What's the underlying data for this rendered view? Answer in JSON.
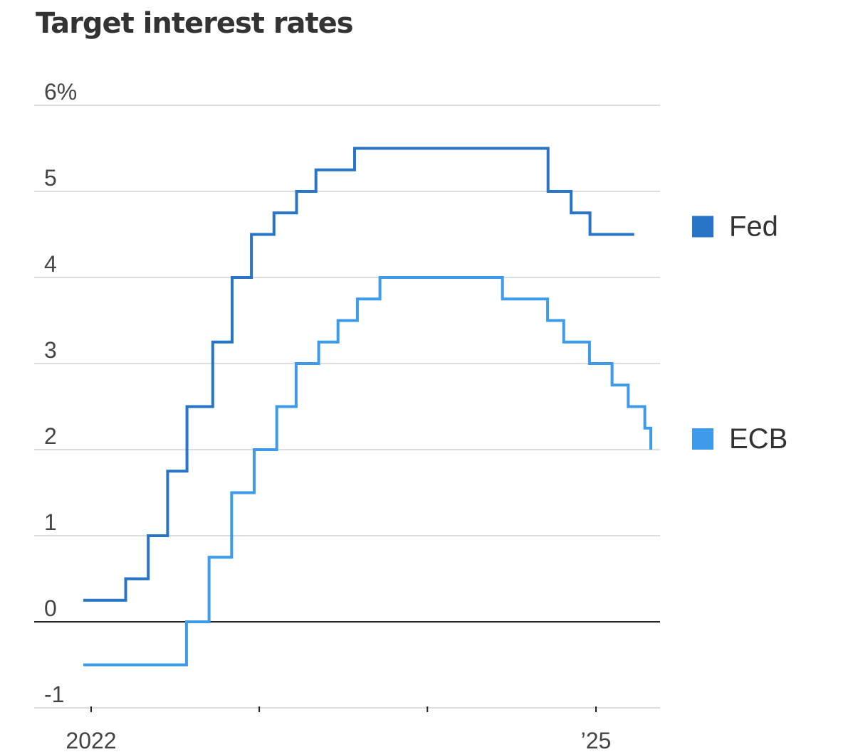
{
  "chart_data": {
    "type": "line",
    "title": "Target interest rates",
    "y_unit_suffix": "%",
    "ylim": [
      -1,
      6
    ],
    "yticks": [
      6,
      5,
      4,
      3,
      2,
      1,
      0,
      -1
    ],
    "ytick_labels": [
      "6%",
      "5",
      "4",
      "3",
      "2",
      "1",
      "0",
      "-1"
    ],
    "xlim": [
      "2021-12-01",
      "2025-04-01"
    ],
    "xtick_dates": [
      "2022-01-01",
      "2023-01-01",
      "2024-01-01",
      "2025-01-01"
    ],
    "xtick_labels": [
      "2022",
      "",
      "",
      "’25"
    ],
    "grid": true,
    "legend_placement": "right",
    "series": [
      {
        "name": "Fed",
        "color": "#2874c6",
        "step": true,
        "points": [
          [
            "2021-12-15",
            0.25
          ],
          [
            "2022-03-17",
            0.5
          ],
          [
            "2022-05-05",
            1.0
          ],
          [
            "2022-06-16",
            1.75
          ],
          [
            "2022-07-28",
            2.5
          ],
          [
            "2022-09-22",
            3.25
          ],
          [
            "2022-11-03",
            4.0
          ],
          [
            "2022-12-15",
            4.5
          ],
          [
            "2023-02-02",
            4.75
          ],
          [
            "2023-03-23",
            5.0
          ],
          [
            "2023-05-04",
            5.25
          ],
          [
            "2023-07-27",
            5.5
          ],
          [
            "2024-09-19",
            5.0
          ],
          [
            "2024-11-08",
            4.75
          ],
          [
            "2024-12-19",
            4.5
          ],
          [
            "2025-03-25",
            4.5
          ]
        ]
      },
      {
        "name": "ECB",
        "color": "#3d9be9",
        "step": true,
        "points": [
          [
            "2021-12-15",
            -0.5
          ],
          [
            "2022-07-27",
            0.0
          ],
          [
            "2022-09-14",
            0.75
          ],
          [
            "2022-11-02",
            1.5
          ],
          [
            "2022-12-21",
            2.0
          ],
          [
            "2023-02-08",
            2.5
          ],
          [
            "2023-03-22",
            3.0
          ],
          [
            "2023-05-10",
            3.25
          ],
          [
            "2023-06-21",
            3.5
          ],
          [
            "2023-08-02",
            3.75
          ],
          [
            "2023-09-20",
            4.0
          ],
          [
            "2024-06-12",
            3.75
          ],
          [
            "2024-09-18",
            3.5
          ],
          [
            "2024-10-23",
            3.25
          ],
          [
            "2024-12-18",
            3.0
          ],
          [
            "2025-02-05",
            2.75
          ],
          [
            "2025-03-12",
            2.5
          ],
          [
            "2025-04-17",
            2.25
          ],
          [
            "2025-04-30",
            2.0
          ]
        ]
      }
    ]
  }
}
